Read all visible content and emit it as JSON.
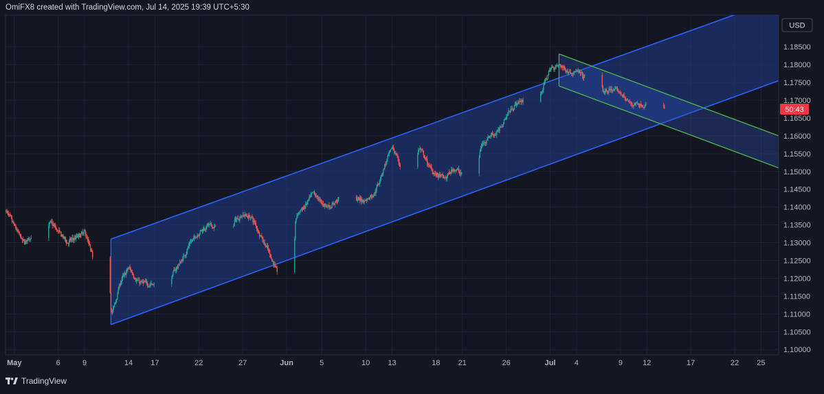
{
  "header": {
    "attribution": "OmiFX8 created with TradingView.com, Jul 14, 2025 19:39 UTC+5:30"
  },
  "footer": {
    "brand": "TradingView",
    "logo_icon": "tradingview-logo-icon"
  },
  "colors": {
    "background": "#141722",
    "grid": "#1f2330",
    "up": "#26a69a",
    "down": "#ef5350",
    "channel_line": "#2962ff",
    "channel_fill": "#1e3a8a",
    "downtrend_line": "#4caf50",
    "countdown_bg": "#f23645",
    "axis_text": "#b2b5be"
  },
  "chart_data": {
    "type": "candlestick",
    "symbol_currency": "USD",
    "countdown_label": "50:43",
    "price_axis": {
      "ticks": [
        "1.18500",
        "1.18000",
        "1.17500",
        "1.17000",
        "1.16500",
        "1.16000",
        "1.15500",
        "1.15000",
        "1.14500",
        "1.14000",
        "1.13500",
        "1.13000",
        "1.12500",
        "1.12000",
        "1.11500",
        "1.11000",
        "1.10500",
        "1.10000"
      ],
      "range": [
        1.0985,
        1.1939
      ]
    },
    "time_axis": {
      "ticks": [
        "May",
        "6",
        "9",
        "14",
        "17",
        "22",
        "27",
        "Jun",
        "5",
        "10",
        "13",
        "18",
        "21",
        "26",
        "Jul",
        "4",
        "9",
        "12",
        "17",
        "22",
        "25"
      ],
      "bold_ticks": [
        "May",
        "Jun",
        "Jul"
      ],
      "range": [
        "2025-04-30",
        "2025-07-27"
      ]
    },
    "price_path": [
      [
        "2025-04-30",
        1.139
      ],
      [
        "2025-05-02",
        1.13
      ],
      [
        "2025-05-05",
        1.136
      ],
      [
        "2025-05-07",
        1.13
      ],
      [
        "2025-05-09",
        1.133
      ],
      [
        "2025-05-10",
        1.125
      ],
      [
        "2025-05-11",
        1.123
      ],
      [
        "2025-05-12",
        1.109
      ],
      [
        "2025-05-13",
        1.119
      ],
      [
        "2025-05-14",
        1.123
      ],
      [
        "2025-05-15",
        1.119
      ],
      [
        "2025-05-16",
        1.1185
      ],
      [
        "2025-05-18",
        1.118
      ],
      [
        "2025-05-20",
        1.125
      ],
      [
        "2025-05-21",
        1.13
      ],
      [
        "2025-05-22",
        1.133
      ],
      [
        "2025-05-23",
        1.135
      ],
      [
        "2025-05-25",
        1.133
      ],
      [
        "2025-05-26",
        1.136
      ],
      [
        "2025-05-27",
        1.138
      ],
      [
        "2025-05-28",
        1.137
      ],
      [
        "2025-05-29",
        1.132
      ],
      [
        "2025-05-30",
        1.127
      ],
      [
        "2025-05-31",
        1.121
      ],
      [
        "2025-06-01",
        1.13
      ],
      [
        "2025-06-02",
        1.138
      ],
      [
        "2025-06-03",
        1.14
      ],
      [
        "2025-06-04",
        1.144
      ],
      [
        "2025-06-05",
        1.141
      ],
      [
        "2025-06-06",
        1.14
      ],
      [
        "2025-06-07",
        1.143
      ],
      [
        "2025-06-08",
        1.145
      ],
      [
        "2025-06-09",
        1.142
      ],
      [
        "2025-06-10",
        1.142
      ],
      [
        "2025-06-11",
        1.144
      ],
      [
        "2025-06-12",
        1.151
      ],
      [
        "2025-06-13",
        1.157
      ],
      [
        "2025-06-14",
        1.151
      ],
      [
        "2025-06-15",
        1.151
      ],
      [
        "2025-06-16",
        1.157
      ],
      [
        "2025-06-17",
        1.152
      ],
      [
        "2025-06-18",
        1.149
      ],
      [
        "2025-06-19",
        1.148
      ],
      [
        "2025-06-20",
        1.151
      ],
      [
        "2025-06-21",
        1.149
      ],
      [
        "2025-06-22",
        1.151
      ],
      [
        "2025-06-23",
        1.157
      ],
      [
        "2025-06-24",
        1.16
      ],
      [
        "2025-06-25",
        1.161
      ],
      [
        "2025-06-26",
        1.166
      ],
      [
        "2025-06-27",
        1.169
      ],
      [
        "2025-06-28",
        1.17
      ],
      [
        "2025-06-29",
        1.172
      ],
      [
        "2025-06-30",
        1.173
      ],
      [
        "2025-07-01",
        1.179
      ],
      [
        "2025-07-02",
        1.18
      ],
      [
        "2025-07-03",
        1.178
      ],
      [
        "2025-07-04",
        1.178
      ],
      [
        "2025-07-05",
        1.176
      ],
      [
        "2025-07-06",
        1.174
      ],
      [
        "2025-07-07",
        1.172
      ],
      [
        "2025-07-08",
        1.173
      ],
      [
        "2025-07-09",
        1.172
      ],
      [
        "2025-07-10",
        1.169
      ],
      [
        "2025-07-11",
        1.169
      ],
      [
        "2025-07-12",
        1.168
      ],
      [
        "2025-07-13",
        1.169
      ],
      [
        "2025-07-14",
        1.1675
      ]
    ],
    "drawings": {
      "ascending_channel": {
        "upper": [
          [
            "2025-05-12",
            1.131
          ],
          [
            "2025-07-22",
            1.194
          ]
        ],
        "lower": [
          [
            "2025-05-12",
            1.107
          ],
          [
            "2025-07-27",
            1.1755
          ]
        ]
      },
      "descending_channel": {
        "upper": [
          [
            "2025-07-02",
            1.183
          ],
          [
            "2025-07-27",
            1.16
          ]
        ],
        "lower": [
          [
            "2025-07-02",
            1.174
          ],
          [
            "2025-07-27",
            1.151
          ]
        ]
      }
    }
  }
}
